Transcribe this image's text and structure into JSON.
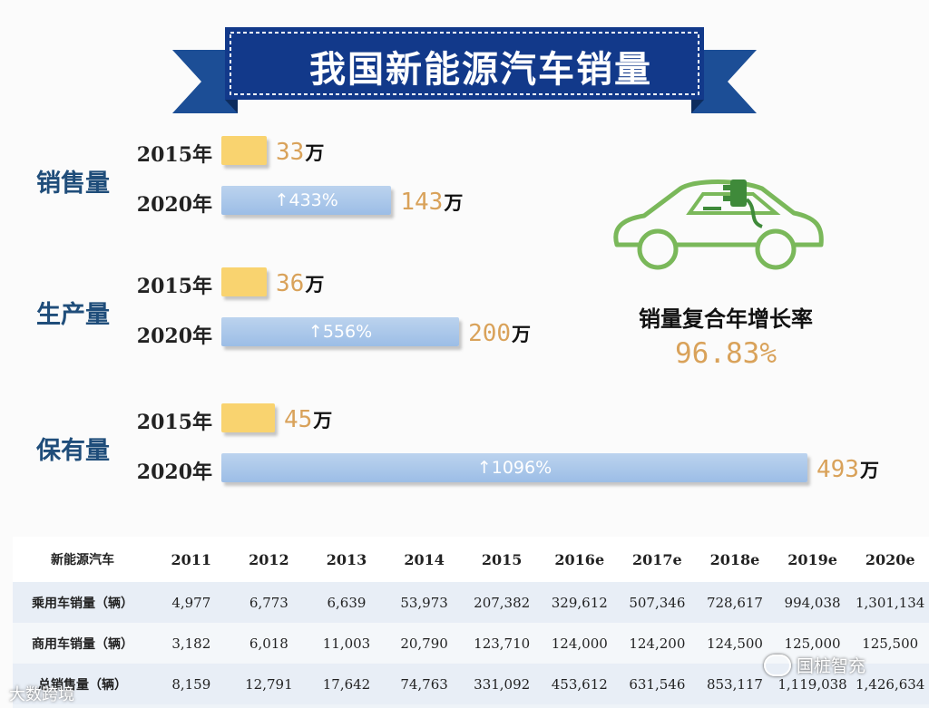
{
  "title": "我国新能源汽车销量",
  "chart_data": {
    "type": "bar",
    "orientation": "horizontal",
    "groups": [
      {
        "label": "销售量",
        "bars": [
          {
            "year": "2015年",
            "value": 33,
            "unit": "万",
            "growth": ""
          },
          {
            "year": "2020年",
            "value": 143,
            "unit": "万",
            "growth": "↑433%"
          }
        ]
      },
      {
        "label": "生产量",
        "bars": [
          {
            "year": "2015年",
            "value": 36,
            "unit": "万",
            "growth": ""
          },
          {
            "year": "2020年",
            "value": 200,
            "unit": "万",
            "growth": "↑556%"
          }
        ]
      },
      {
        "label": "保有量",
        "bars": [
          {
            "year": "2015年",
            "value": 45,
            "unit": "万",
            "growth": ""
          },
          {
            "year": "2020年",
            "value": 493,
            "unit": "万",
            "growth": "↑1096%"
          }
        ]
      }
    ],
    "colors": {
      "2015": "#f9d36f",
      "2020": "#a9c6ea"
    }
  },
  "cagr": {
    "label": "销量复合年增长率",
    "value": "96.83%"
  },
  "table": {
    "header": [
      "新能源汽车",
      "2011",
      "2012",
      "2013",
      "2014",
      "2015",
      "2016e",
      "2017e",
      "2018e",
      "2019e",
      "2020e"
    ],
    "rows": [
      [
        "乘用车销量（辆）",
        "4,977",
        "6,773",
        "6,639",
        "53,973",
        "207,382",
        "329,612",
        "507,346",
        "728,617",
        "994,038",
        "1,301,134"
      ],
      [
        "商用车销量（辆）",
        "3,182",
        "6,018",
        "11,003",
        "20,790",
        "123,710",
        "124,000",
        "124,200",
        "124,500",
        "125,000",
        "125,500"
      ],
      [
        "总销售量（辆）",
        "8,159",
        "12,791",
        "17,642",
        "74,763",
        "331,092",
        "453,612",
        "631,546",
        "853,117",
        "1,119,038",
        "1,426,634"
      ]
    ]
  },
  "watermarks": {
    "left": "大数跨境",
    "right": "国桩智充"
  },
  "icons": {
    "car": "electric-car-icon",
    "banner": "ribbon-banner"
  }
}
